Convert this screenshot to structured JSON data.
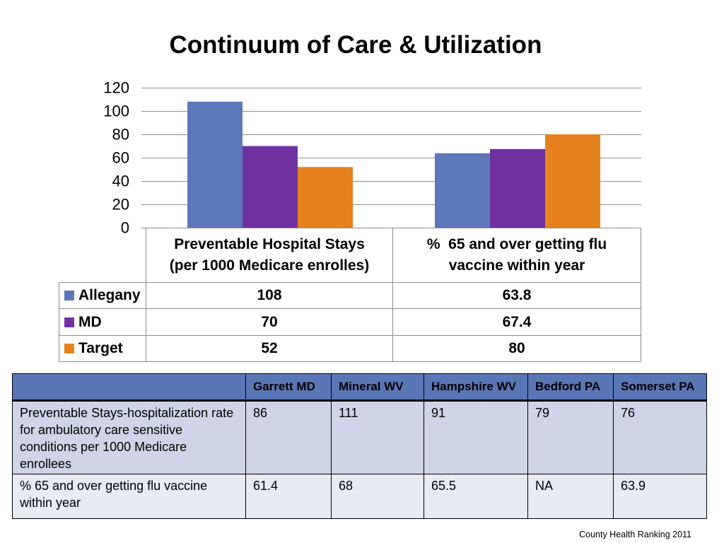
{
  "slide": {
    "title": "Continuum of Care & Utilization",
    "footnote": "County Health Ranking 2011"
  },
  "chart_data": {
    "type": "bar",
    "categories": [
      "Preventable Hospital Stays (per 1000 Medicare enrolles)",
      "%  65 and over getting flu vaccine within year"
    ],
    "series": [
      {
        "name": "Allegany",
        "values": [
          108,
          63.8
        ],
        "color": "#5C78B9"
      },
      {
        "name": "MD",
        "values": [
          70,
          67.4
        ],
        "color": "#7031A0"
      },
      {
        "name": "Target",
        "values": [
          52,
          80
        ],
        "color": "#E6821E"
      }
    ],
    "ylim": [
      0,
      120
    ],
    "yticks": [
      0,
      20,
      40,
      60,
      80,
      100,
      120
    ],
    "grid": true,
    "legend": "left",
    "data_table": true
  },
  "comparison_table": {
    "header_color": "#5B76B5",
    "columns": [
      "",
      "Garrett MD",
      "Mineral WV",
      "Hampshire WV",
      "Bedford PA",
      "Somerset PA"
    ],
    "rows": [
      {
        "label": "Preventable Stays-hospitalization rate for ambulatory care sensitive conditions per 1000 Medicare enrollees",
        "values": [
          "86",
          "111",
          "91",
          "79",
          "76"
        ],
        "color": "#CFD4E8"
      },
      {
        "label": "% 65 and over getting flu vaccine within year",
        "values": [
          "61.4",
          "68",
          "65.5",
          "NA",
          "63.9"
        ],
        "color": "#E8EAF4"
      }
    ]
  }
}
